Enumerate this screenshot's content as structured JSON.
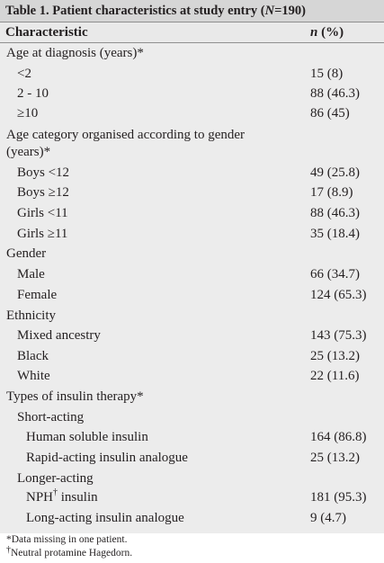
{
  "table": {
    "title_label": "Table 1.",
    "title_text": "Patient characteristics at study entry (",
    "title_n": "N",
    "title_end": "=190)",
    "col_characteristic": "Characteristic",
    "col_n": "n",
    "col_pct": " (%)",
    "rows": [
      {
        "label": "Age at diagnosis (years)*",
        "value": ""
      },
      {
        "label": "<2",
        "value": "15 (8)"
      },
      {
        "label": "2 - 10",
        "value": "88 (46.3)"
      },
      {
        "label": "≥10",
        "value": "86 (45)"
      },
      {
        "label": "Age category organised according to gender",
        "value": ""
      },
      {
        "label": "(years)*",
        "value": ""
      },
      {
        "label": "Boys <12",
        "value": "49 (25.8)"
      },
      {
        "label": "Boys ≥12",
        "value": "17 (8.9)"
      },
      {
        "label": "Girls <11",
        "value": "88 (46.3)"
      },
      {
        "label": "Girls ≥11",
        "value": "35 (18.4)"
      },
      {
        "label": "Gender",
        "value": ""
      },
      {
        "label": "Male",
        "value": "66 (34.7)"
      },
      {
        "label": "Female",
        "value": "124 (65.3)"
      },
      {
        "label": "Ethnicity",
        "value": ""
      },
      {
        "label": "Mixed ancestry",
        "value": "143 (75.3)"
      },
      {
        "label": "Black",
        "value": "25 (13.2)"
      },
      {
        "label": "White",
        "value": "22 (11.6)"
      },
      {
        "label": "Types of insulin therapy*",
        "value": ""
      },
      {
        "label": "Short-acting",
        "value": ""
      },
      {
        "label": "Human soluble insulin",
        "value": "164 (86.8)"
      },
      {
        "label": "Rapid-acting insulin analogue",
        "value": "25 (13.2)"
      },
      {
        "label": "Longer-acting",
        "value": ""
      },
      {
        "label": "NPH",
        "sup": "†",
        "label_after": " insulin",
        "value": "181 (95.3)"
      },
      {
        "label": "Long-acting insulin analogue",
        "value": "9 (4.7)"
      }
    ],
    "footnote_1": "*Data missing in one patient.",
    "footnote_2_mark": "†",
    "footnote_2": "Neutral protamine Hagedorn."
  }
}
